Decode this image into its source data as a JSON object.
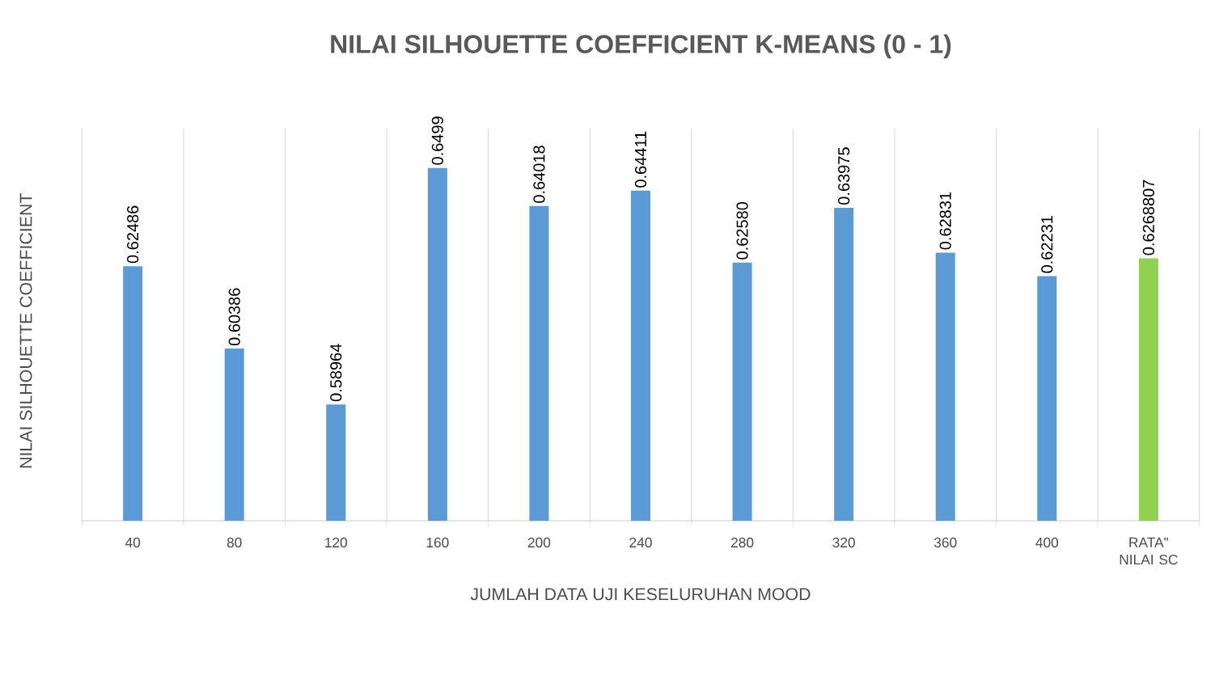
{
  "chart_data": {
    "type": "bar",
    "title": "NILAI SILHOUETTE COEFFICIENT K-MEANS (0 - 1)",
    "xlabel": "JUMLAH DATA UJI KESELURUHAN MOOD",
    "ylabel": "NILAI SILHOUETTE COEFFICIENT",
    "categories": [
      "40",
      "80",
      "120",
      "160",
      "200",
      "240",
      "280",
      "320",
      "360",
      "400",
      "RATA\" NILAI SC"
    ],
    "values": [
      0.62486,
      0.60386,
      0.58964,
      0.6499,
      0.64018,
      0.64411,
      0.6258,
      0.63975,
      0.62831,
      0.62231,
      0.6268807
    ],
    "value_labels": [
      "0.62486",
      "0.60386",
      "0.58964",
      "0.6499",
      "0.64018",
      "0.64411",
      "0.62580",
      "0.63975",
      "0.62831",
      "0.62231",
      "0.6268807"
    ],
    "colors": [
      "#5b9bd5",
      "#5b9bd5",
      "#5b9bd5",
      "#5b9bd5",
      "#5b9bd5",
      "#5b9bd5",
      "#5b9bd5",
      "#5b9bd5",
      "#5b9bd5",
      "#5b9bd5",
      "#92d050"
    ],
    "ylim": [
      0.56,
      0.66
    ],
    "grid": "x",
    "tick_labels": "x"
  }
}
